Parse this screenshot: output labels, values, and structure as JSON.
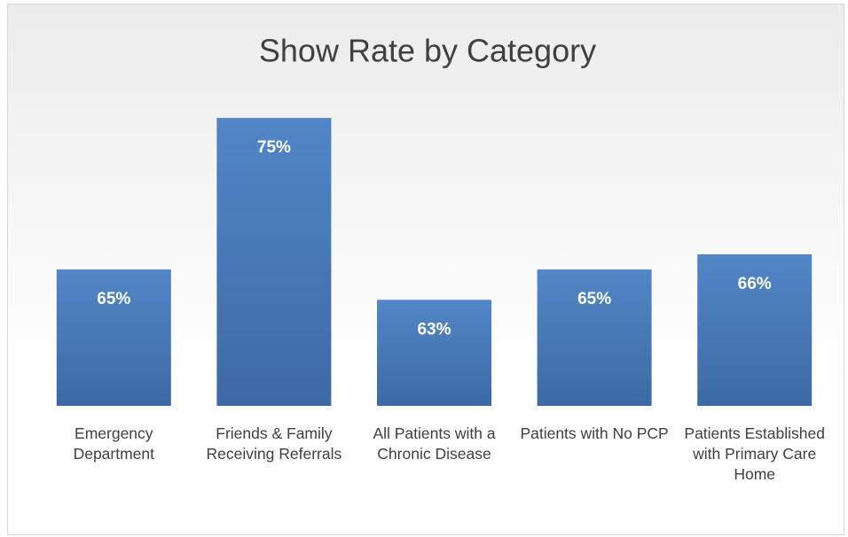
{
  "chart_data": {
    "type": "bar",
    "title": "Show Rate by Category",
    "categories": [
      "Emergency Department",
      "Friends & Family Receiving Referrals",
      "All Patients with a Chronic Disease",
      "Patients with No PCP",
      "Patients Established with Primary Care Home"
    ],
    "values": [
      65,
      75,
      63,
      65,
      66
    ],
    "value_labels": [
      "65%",
      "75%",
      "63%",
      "65%",
      "66%"
    ],
    "color": "#4a7ebb",
    "ylim": [
      56,
      76
    ]
  }
}
